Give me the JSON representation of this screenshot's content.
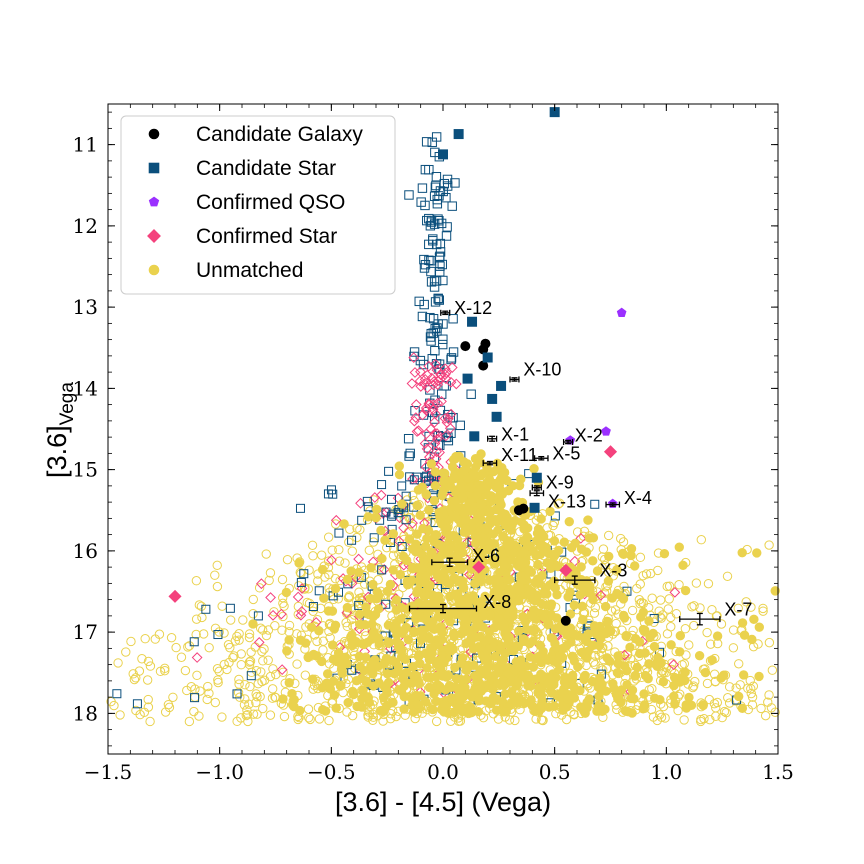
{
  "chart_data": {
    "type": "scatter",
    "xlabel": "[3.6] - [4.5] (Vega)",
    "ylabel_main": "[3.6]",
    "ylabel_sub": "Vega",
    "xlim": [
      -1.5,
      1.5
    ],
    "ylim": [
      18.5,
      10.5
    ],
    "x_ticks": [
      -1.5,
      -1.0,
      -0.5,
      0.0,
      0.5,
      1.0,
      1.5
    ],
    "x_tick_labels": [
      "−1.5",
      "−1.0",
      "−0.5",
      "0.0",
      "0.5",
      "1.0",
      "1.5"
    ],
    "y_ticks": [
      11,
      12,
      13,
      14,
      15,
      16,
      17,
      18
    ],
    "y_tick_labels": [
      "11",
      "12",
      "13",
      "14",
      "15",
      "16",
      "17",
      "18"
    ],
    "colors": {
      "galaxy": "#000000",
      "candidate_star": "#0b4f7c",
      "qso": "#9b30ff",
      "confirmed_star": "#f4427d",
      "unmatched": "#ead24e",
      "error_bar": "#000000"
    },
    "legend": [
      {
        "label": "Candidate Galaxy",
        "marker": "circle",
        "color_key": "galaxy"
      },
      {
        "label": "Candidate Star",
        "marker": "square",
        "color_key": "candidate_star"
      },
      {
        "label": "Confirmed QSO",
        "marker": "pentagon",
        "color_key": "qso"
      },
      {
        "label": "Confirmed Star",
        "marker": "diamond",
        "color_key": "confirmed_star"
      },
      {
        "label": "Unmatched",
        "marker": "circle",
        "color_key": "unmatched"
      }
    ],
    "legend_location": "upper left",
    "xray_sources": [
      {
        "name": "X-1",
        "x": 0.22,
        "y": 14.62,
        "xerr": 0.02,
        "yerr": 0.03,
        "label_dx": 0.02,
        "label_dy": -0.05
      },
      {
        "name": "X-2",
        "x": 0.56,
        "y": 14.66,
        "xerr": 0.02,
        "yerr": 0.02,
        "label_dx": 0.01,
        "label_dy": -0.08
      },
      {
        "name": "X-3",
        "x": 0.59,
        "y": 16.36,
        "xerr": 0.09,
        "yerr": 0.05,
        "label_dx": 0.02,
        "label_dy": -0.12
      },
      {
        "name": "X-4",
        "x": 0.76,
        "y": 15.43,
        "xerr": 0.03,
        "yerr": 0.02,
        "label_dx": 0.02,
        "label_dy": -0.08
      },
      {
        "name": "X-5",
        "x": 0.44,
        "y": 14.86,
        "xerr": 0.03,
        "yerr": 0.02,
        "label_dx": 0.02,
        "label_dy": -0.06
      },
      {
        "name": "X-6",
        "x": 0.03,
        "y": 16.14,
        "xerr": 0.08,
        "yerr": 0.05,
        "label_dx": 0.02,
        "label_dy": -0.08
      },
      {
        "name": "X-7",
        "x": 1.15,
        "y": 16.84,
        "xerr": 0.09,
        "yerr": 0.07,
        "label_dx": 0.02,
        "label_dy": -0.12
      },
      {
        "name": "X-8",
        "x": 0.0,
        "y": 16.71,
        "xerr": 0.15,
        "yerr": 0.05,
        "label_dx": 0.03,
        "label_dy": -0.08
      },
      {
        "name": "X-9",
        "x": 0.42,
        "y": 15.22,
        "xerr": 0.02,
        "yerr": 0.02,
        "label_dx": 0.02,
        "label_dy": -0.06
      },
      {
        "name": "X-10",
        "x": 0.32,
        "y": 13.89,
        "xerr": 0.02,
        "yerr": 0.02,
        "label_dx": 0.02,
        "label_dy": -0.12
      },
      {
        "name": "X-11",
        "x": 0.21,
        "y": 14.92,
        "xerr": 0.03,
        "yerr": 0.02,
        "label_dx": 0.02,
        "label_dy": -0.1
      },
      {
        "name": "X-12",
        "x": 0.01,
        "y": 13.07,
        "xerr": 0.02,
        "yerr": 0.02,
        "label_dx": 0.02,
        "label_dy": -0.06
      },
      {
        "name": "X-13",
        "x": 0.42,
        "y": 15.29,
        "xerr": 0.03,
        "yerr": 0.03,
        "label_dx": 0.02,
        "label_dy": 0.1
      }
    ],
    "series": [
      {
        "name": "Candidate Galaxy",
        "marker": "circle",
        "color_key": "galaxy",
        "points": [
          [
            0.1,
            13.48
          ],
          [
            0.18,
            13.52
          ],
          [
            0.19,
            13.45
          ],
          [
            0.34,
            15.5
          ],
          [
            0.55,
            16.86
          ],
          [
            0.18,
            13.72
          ],
          [
            0.36,
            15.48
          ]
        ]
      },
      {
        "name": "Candidate Star",
        "marker": "square",
        "color_key": "candidate_star",
        "points": [
          [
            0.5,
            10.6
          ],
          [
            0.07,
            10.87
          ],
          [
            0.0,
            11.12
          ],
          [
            0.13,
            13.18
          ],
          [
            0.2,
            13.62
          ],
          [
            0.11,
            13.88
          ],
          [
            0.22,
            14.13
          ],
          [
            0.24,
            14.35
          ],
          [
            0.14,
            14.59
          ],
          [
            0.42,
            15.1
          ],
          [
            0.41,
            15.47
          ],
          [
            0.26,
            13.97
          ]
        ]
      },
      {
        "name": "Confirmed QSO",
        "marker": "pentagon",
        "color_key": "qso",
        "points": [
          [
            0.8,
            13.07
          ],
          [
            0.73,
            14.53
          ],
          [
            0.57,
            14.64
          ],
          [
            0.76,
            15.42
          ]
        ]
      },
      {
        "name": "Confirmed Star",
        "marker": "diamond",
        "color_key": "confirmed_star",
        "points": [
          [
            0.75,
            14.78
          ],
          [
            0.55,
            16.24
          ],
          [
            0.16,
            16.2
          ],
          [
            -1.2,
            16.56
          ]
        ]
      }
    ]
  }
}
